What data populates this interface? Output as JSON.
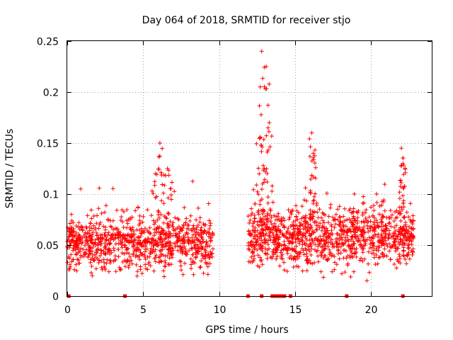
{
  "chart_data": {
    "type": "scatter",
    "title": "Day 064 of 2018, SRMTID for receiver stjo",
    "xlabel": "GPS time / hours",
    "ylabel": "SRMTID / TECUs",
    "xlim": [
      0,
      24
    ],
    "ylim": [
      0,
      0.25
    ],
    "xticks": [
      0,
      5,
      10,
      15,
      20
    ],
    "yticks": [
      0,
      0.05,
      0.1,
      0.15,
      0.2,
      0.25
    ],
    "xtick_labels": [
      "0",
      "5",
      "10",
      "15",
      "20"
    ],
    "ytick_labels": [
      "0",
      "0.05",
      "0.1",
      "0.15",
      "0.2",
      "0.25"
    ],
    "grid": true,
    "marker": "+",
    "color": "#ff0000",
    "series": [
      {
        "name": "SRMTID",
        "segments": [
          {
            "x_start": 0.0,
            "x_end": 9.6,
            "y_base": 0.052,
            "y_spread": 0.018,
            "n": 900,
            "peaks": [
              [
                5.8,
                0.12
              ],
              [
                6.1,
                0.15
              ],
              [
                6.6,
                0.125
              ]
            ]
          },
          {
            "x_start": 11.9,
            "x_end": 22.8,
            "y_base": 0.058,
            "y_spread": 0.02,
            "n": 1100,
            "peaks": [
              [
                12.8,
                0.24
              ],
              [
                12.7,
                0.205
              ],
              [
                13.1,
                0.225
              ],
              [
                13.3,
                0.17
              ],
              [
                16.1,
                0.16
              ],
              [
                16.2,
                0.14
              ],
              [
                22.0,
                0.145
              ],
              [
                22.1,
                0.13
              ]
            ]
          }
        ]
      }
    ],
    "zero_flags_x": [
      0.1,
      3.8,
      11.9,
      12.8,
      13.5,
      13.7,
      13.9,
      14.1,
      14.3,
      14.7,
      18.4,
      22.1
    ]
  }
}
